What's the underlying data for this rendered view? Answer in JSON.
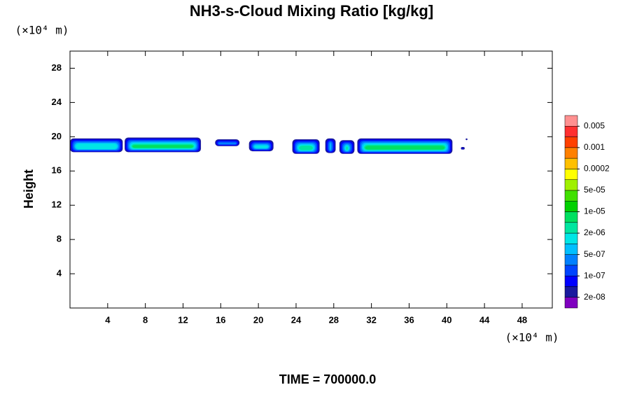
{
  "chart_data": {
    "type": "contour",
    "title": "NH3-s-Cloud Mixing Ratio [kg/kg]",
    "ylabel": "Height",
    "yunit": "(×10⁴ m)",
    "xunit": "(×10⁴ m)",
    "footer": "TIME = 700000.0",
    "xlim": [
      0,
      51.2
    ],
    "ylim": [
      0,
      30
    ],
    "xticks": [
      4,
      8,
      12,
      16,
      20,
      24,
      28,
      32,
      36,
      40,
      44,
      48
    ],
    "yticks": [
      4,
      8,
      12,
      16,
      20,
      24,
      28
    ],
    "colorbar": {
      "colors": [
        "#7f00bf",
        "#1a1a9e",
        "#0000ff",
        "#0044ff",
        "#0080ff",
        "#00bfff",
        "#00e6e6",
        "#00e6a0",
        "#00e060",
        "#00d000",
        "#40e000",
        "#a0f000",
        "#ffff00",
        "#ffc000",
        "#ff8000",
        "#ff4000",
        "#ff3030",
        "#ff9090"
      ],
      "ticks": [
        {
          "value": 2e-08,
          "label": "2e-08"
        },
        {
          "value": 1e-07,
          "label": "1e-07"
        },
        {
          "value": 5e-07,
          "label": "5e-07"
        },
        {
          "value": 2e-06,
          "label": "2e-06"
        },
        {
          "value": 1e-05,
          "label": "1e-05"
        },
        {
          "value": 5e-05,
          "label": "5e-05"
        },
        {
          "value": 0.0002,
          "label": "0.0002"
        },
        {
          "value": 0.001,
          "label": "0.001"
        },
        {
          "value": 0.005,
          "label": "0.005"
        }
      ]
    },
    "regions": [
      {
        "x": [
          0,
          5.6
        ],
        "y": [
          18.2,
          19.8
        ],
        "peak": 6
      },
      {
        "x": [
          5.8,
          13.9
        ],
        "y": [
          18.2,
          19.9
        ],
        "peak": 8
      },
      {
        "x": [
          15.4,
          18.0
        ],
        "y": [
          18.9,
          19.7
        ],
        "peak": 4
      },
      {
        "x": [
          19.0,
          21.6
        ],
        "y": [
          18.3,
          19.6
        ],
        "peak": 6
      },
      {
        "x": [
          23.6,
          26.5
        ],
        "y": [
          18.0,
          19.7
        ],
        "peak": 7
      },
      {
        "x": [
          27.1,
          28.2
        ],
        "y": [
          18.1,
          19.8
        ],
        "peak": 5
      },
      {
        "x": [
          28.6,
          30.2
        ],
        "y": [
          18.0,
          19.6
        ],
        "peak": 7
      },
      {
        "x": [
          30.5,
          40.6
        ],
        "y": [
          18.0,
          19.8
        ],
        "peak": 8
      },
      {
        "x": [
          41.5,
          41.9
        ],
        "y": [
          18.5,
          18.8
        ],
        "peak": 3
      },
      {
        "x": [
          42.0,
          42.2
        ],
        "y": [
          19.6,
          19.8
        ],
        "peak": 2
      }
    ]
  }
}
